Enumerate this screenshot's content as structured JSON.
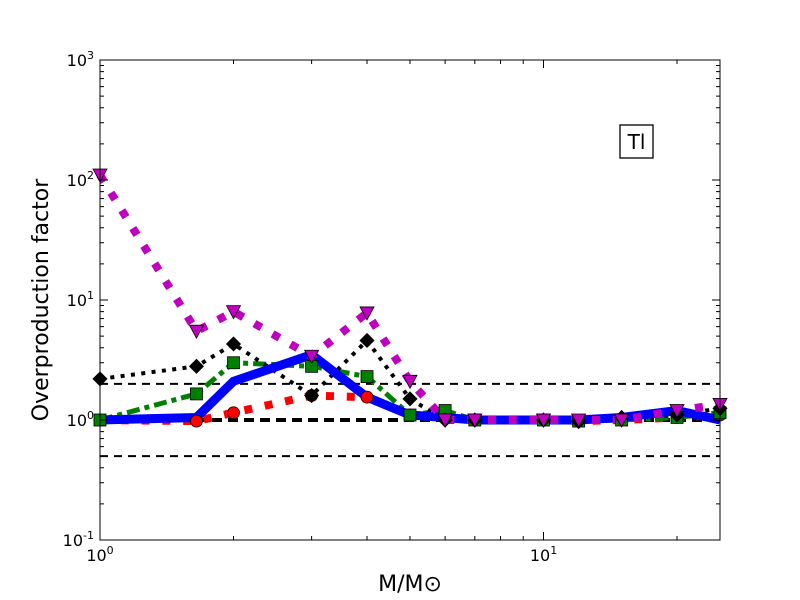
{
  "chart_data": {
    "type": "line",
    "title": "",
    "xlabel": "M/M⊙",
    "ylabel": "Overproduction factor",
    "xscale": "log",
    "yscale": "log",
    "xlim": [
      1,
      25
    ],
    "ylim": [
      0.1,
      1000
    ],
    "grid": false,
    "x_ticks": [
      {
        "value": 1,
        "base": "10",
        "exp": "0"
      },
      {
        "value": 10,
        "base": "10",
        "exp": "1"
      }
    ],
    "y_ticks": [
      {
        "value": 0.1,
        "base": "10",
        "exp": "-1"
      },
      {
        "value": 1,
        "base": "10",
        "exp": "0"
      },
      {
        "value": 10,
        "base": "10",
        "exp": "1"
      },
      {
        "value": 100,
        "base": "10",
        "exp": "2"
      },
      {
        "value": 1000,
        "base": "10",
        "exp": "3"
      }
    ],
    "annotation": "Tl",
    "reference_lines": [
      {
        "y": 2.0,
        "color": "#000000",
        "style": "dashed",
        "width": 2
      },
      {
        "y": 1.0,
        "color": "#000000",
        "style": "dashed",
        "width": 4
      },
      {
        "y": 0.5,
        "color": "#000000",
        "style": "dashed",
        "width": 2
      }
    ],
    "series": [
      {
        "color": "#ff0000",
        "style": "dotted",
        "width": 8,
        "marker": "circle",
        "x": [
          1.0,
          1.65,
          2.0,
          3.0,
          4.0,
          5.0,
          6.0,
          7.0,
          10.0,
          12.0,
          15.0,
          20.0,
          25.0
        ],
        "y": [
          1.0,
          0.98,
          1.15,
          1.6,
          1.55,
          1.1,
          1.05,
          1.0,
          1.0,
          0.98,
          1.0,
          1.05,
          1.1
        ]
      },
      {
        "color": "#008000",
        "style": "dashdot",
        "width": 5,
        "marker": "square",
        "x": [
          1.0,
          1.65,
          2.0,
          3.0,
          4.0,
          5.0,
          6.0,
          7.0,
          10.0,
          12.0,
          15.0,
          20.0,
          25.0
        ],
        "y": [
          1.0,
          1.65,
          3.0,
          2.8,
          2.3,
          1.1,
          1.2,
          1.0,
          1.0,
          0.98,
          1.0,
          1.05,
          1.15
        ]
      },
      {
        "color": "#000000",
        "style": "dotted",
        "width": 4,
        "marker": "diamond",
        "x": [
          1.0,
          1.65,
          2.0,
          3.0,
          4.0,
          5.0,
          6.0,
          7.0,
          10.0,
          12.0,
          15.0,
          20.0,
          25.0
        ],
        "y": [
          2.2,
          2.8,
          4.3,
          1.6,
          4.6,
          1.5,
          1.0,
          1.0,
          1.0,
          0.97,
          1.05,
          1.1,
          1.25
        ]
      },
      {
        "color": "#0000ff",
        "style": "solid",
        "width": 9,
        "marker": "none",
        "x": [
          1.0,
          1.65,
          2.0,
          3.0,
          4.0,
          5.0,
          6.0,
          7.0,
          10.0,
          12.0,
          15.0,
          20.0,
          25.0
        ],
        "y": [
          1.0,
          1.05,
          2.1,
          3.5,
          1.55,
          1.1,
          1.05,
          1.0,
          1.0,
          1.0,
          1.05,
          1.2,
          1.0
        ]
      },
      {
        "color": "#bf00bf",
        "style": "dotted",
        "width": 8,
        "marker": "triangle-down",
        "x": [
          1.0,
          1.65,
          2.0,
          3.0,
          4.0,
          5.0,
          6.0,
          7.0,
          10.0,
          12.0,
          15.0,
          20.0,
          25.0
        ],
        "y": [
          110.0,
          5.5,
          8.0,
          3.4,
          7.8,
          2.1,
          1.0,
          1.0,
          1.0,
          1.0,
          1.0,
          1.2,
          1.35
        ]
      }
    ]
  }
}
